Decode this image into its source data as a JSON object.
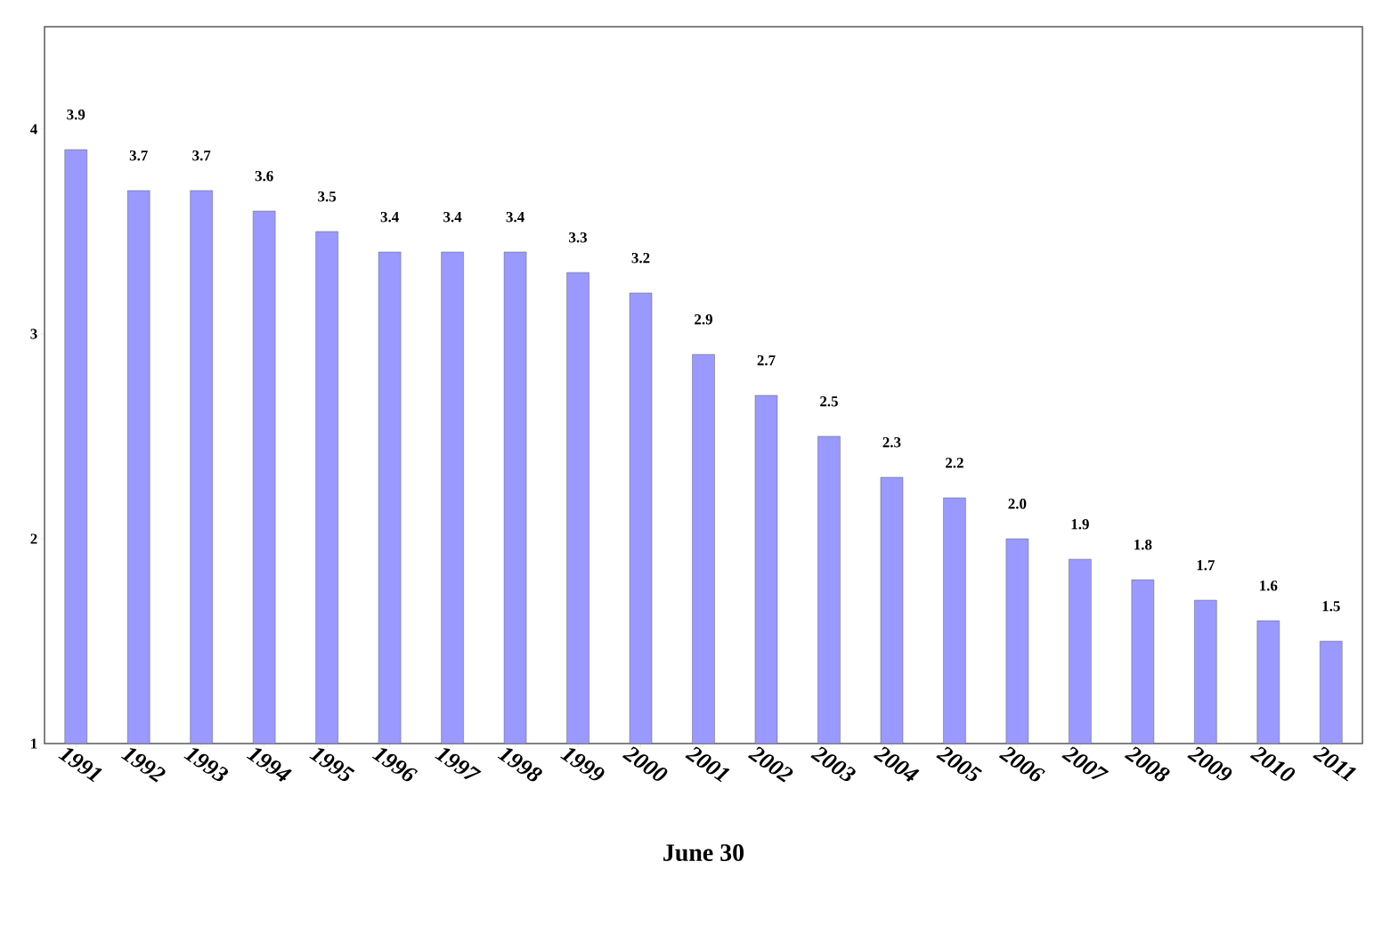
{
  "chart_data": {
    "type": "bar",
    "xlabel": "June 30",
    "categories": [
      "1991",
      "1992",
      "1993",
      "1994",
      "1995",
      "1996",
      "1997",
      "1998",
      "1999",
      "2000",
      "2001",
      "2002",
      "2003",
      "2004",
      "2005",
      "2006",
      "2007",
      "2008",
      "2009",
      "2010",
      "2011"
    ],
    "values": [
      3.9,
      3.7,
      3.7,
      3.6,
      3.5,
      3.4,
      3.4,
      3.4,
      3.3,
      3.2,
      2.9,
      2.7,
      2.5,
      2.3,
      2.2,
      2.0,
      1.9,
      1.8,
      1.7,
      1.6,
      1.5
    ],
    "value_labels": [
      "3.9",
      "3.7",
      "3.7",
      "3.6",
      "3.5",
      "3.4",
      "3.4",
      "3.4",
      "3.3",
      "3.2",
      "2.9",
      "2.7",
      "2.5",
      "2.3",
      "2.2",
      "2.0",
      "1.9",
      "1.8",
      "1.7",
      "1.6",
      "1.5"
    ],
    "color": "#9999ff",
    "ylim": [
      1,
      4.5
    ],
    "yticks": [
      1,
      2,
      3,
      4
    ]
  }
}
